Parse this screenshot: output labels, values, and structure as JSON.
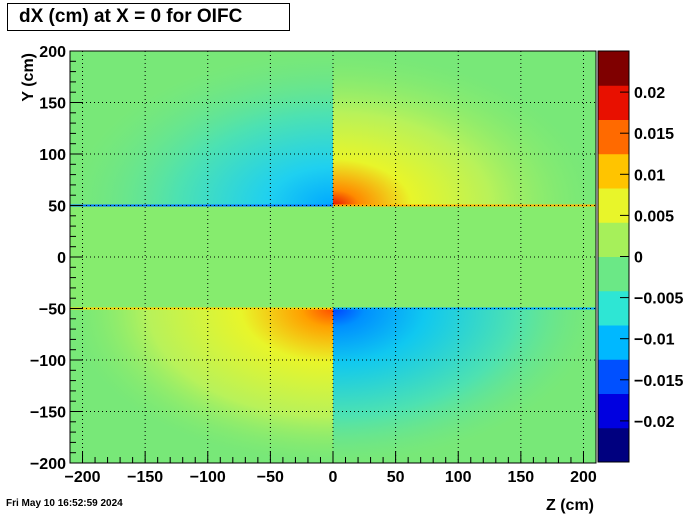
{
  "chart_data": {
    "type": "heatmap",
    "title": "dX (cm) at X = 0 for OIFC",
    "xlabel": "Z (cm)",
    "ylabel": "Y (cm)",
    "xlim": [
      -210,
      210
    ],
    "ylim": [
      -200,
      200
    ],
    "x_ticks": [
      -200,
      -150,
      -100,
      -50,
      0,
      50,
      100,
      150,
      200
    ],
    "x_tick_labels": [
      "−200",
      "−150",
      "−100",
      "−50",
      "0",
      "50",
      "100",
      "150",
      "200"
    ],
    "y_ticks": [
      -200,
      -150,
      -100,
      -50,
      0,
      50,
      100,
      150,
      200
    ],
    "y_tick_labels": [
      "−200",
      "−150",
      "−100",
      "−50",
      "0",
      "50",
      "100",
      "150",
      "200"
    ],
    "grid": true,
    "colorbar": {
      "zlim": [
        -0.025,
        0.025
      ],
      "ticks": [
        0.02,
        0.015,
        0.01,
        0.005,
        0,
        -0.005,
        -0.01,
        -0.015,
        -0.02
      ],
      "tick_labels": [
        "0.02",
        "0.015",
        "0.01",
        "0.005",
        "0",
        "−0.005",
        "−0.01",
        "−0.015",
        "−0.02"
      ],
      "palette": [
        "#00007f",
        "#0000e0",
        "#0050ff",
        "#00b8ff",
        "#2ee6d4",
        "#6be886",
        "#a6f05a",
        "#e8f52a",
        "#ffc400",
        "#ff6a00",
        "#e81000",
        "#7f0000"
      ]
    },
    "field_description": {
      "baseline": 0.0,
      "upper_edge_y": 50,
      "lower_edge_y": -50,
      "upper_left_peak": -0.012,
      "upper_right_peak": 0.022,
      "lower_left_peak": 0.018,
      "lower_right_peak": -0.02
    }
  },
  "footer": {
    "datestamp": "Fri May 10 16:52:59 2024"
  }
}
